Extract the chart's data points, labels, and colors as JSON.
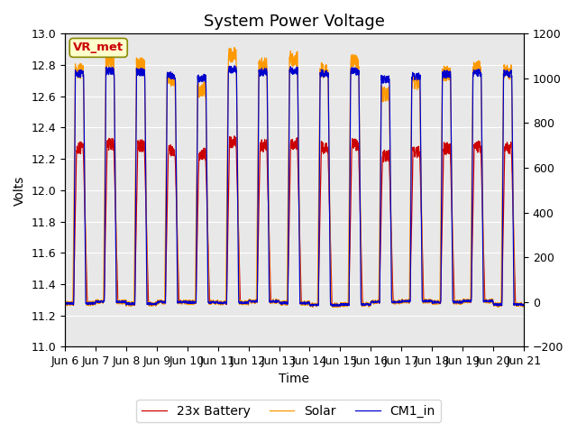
{
  "title": "System Power Voltage",
  "xlabel": "Time",
  "ylabel": "Volts",
  "left_ylim": [
    11.0,
    13.0
  ],
  "right_ylim": [
    -200,
    1200
  ],
  "left_yticks": [
    11.0,
    11.2,
    11.4,
    11.6,
    11.8,
    12.0,
    12.2,
    12.4,
    12.6,
    12.8,
    13.0
  ],
  "right_yticks": [
    -200,
    0,
    200,
    400,
    600,
    800,
    1000,
    1200
  ],
  "num_days": 15,
  "xtick_positions": [
    0,
    1,
    2,
    3,
    4,
    5,
    6,
    7,
    8,
    9,
    10,
    11,
    12,
    13,
    14,
    15
  ],
  "xtick_labels": [
    "Jun 6",
    "Jun 7",
    "Jun 8",
    "Jun 9",
    "Jun 10",
    "Jun 11",
    "Jun 12",
    "Jun 13",
    "Jun 14",
    "Jun 15",
    "Jun 16",
    "Jun 17",
    "Jun 18",
    "Jun 19",
    "Jun 20",
    "Jun 21"
  ],
  "battery_color": "#cc0000",
  "solar_color": "#ff9900",
  "cm1_color": "#0000cc",
  "legend_labels": [
    "23x Battery",
    "Solar",
    "CM1_in"
  ],
  "annotation_text": "VR_met",
  "annotation_color": "#cc0000",
  "annotation_bg": "#ffffcc",
  "plot_bg_color": "#e8e8e8",
  "title_fontsize": 13,
  "axis_fontsize": 10,
  "tick_fontsize": 9,
  "legend_fontsize": 10
}
